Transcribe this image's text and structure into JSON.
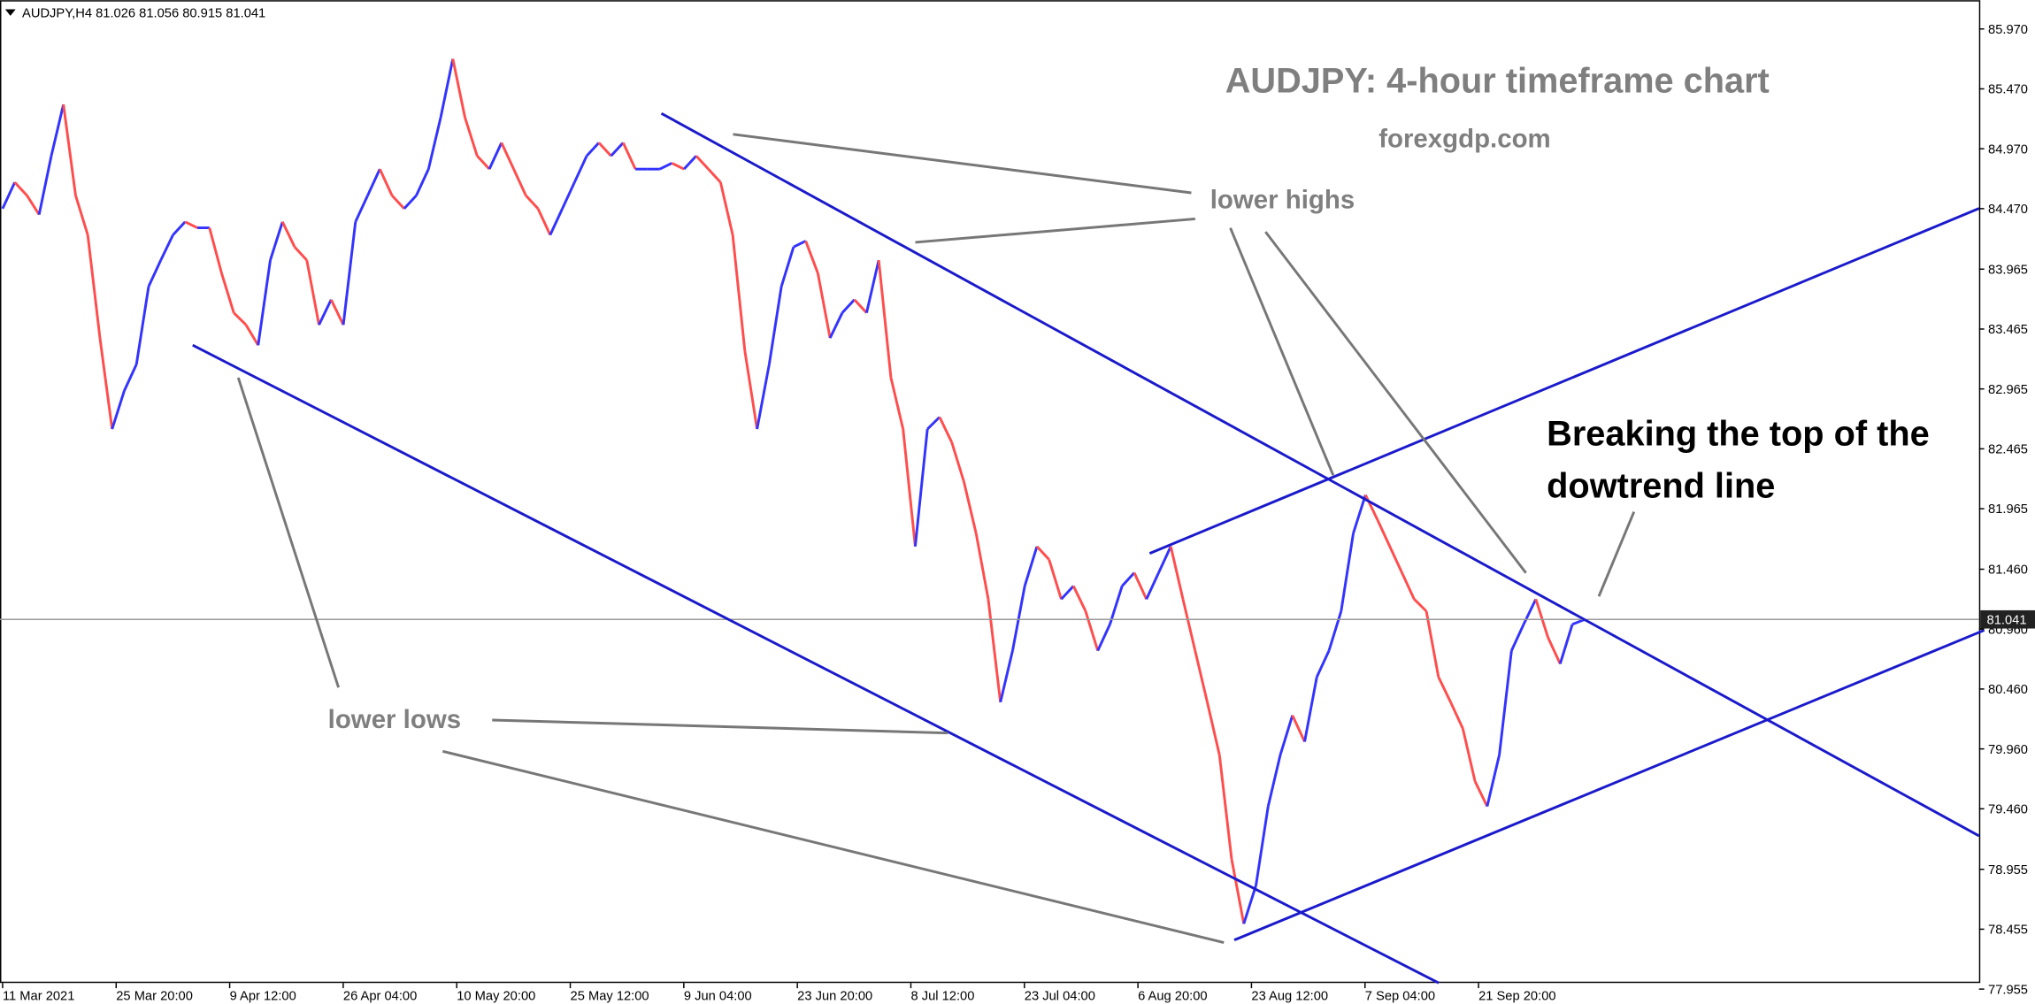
{
  "header": "AUDJPY,H4  81.026 81.056 80.915 81.041",
  "chart_data": {
    "type": "price-line",
    "title": "AUDJPY: 4-hour timeframe chart",
    "subtitle": "forexgdp.com",
    "annotations": [
      "lower highs",
      "Breaking the top of the",
      "dowtrend line",
      "lower lows"
    ],
    "up_color": "#3333ff",
    "down_color": "#ff4d4d",
    "ylim": [
      77.93,
      86.21
    ],
    "yticks": [
      {
        "value": 85.97,
        "label": "85.970"
      },
      {
        "value": 85.47,
        "label": "85.470"
      },
      {
        "value": 84.97,
        "label": "84.970"
      },
      {
        "value": 84.47,
        "label": "84.470"
      },
      83.965,
      83.465,
      82.965,
      82.465,
      81.965,
      {
        "value": 81.46,
        "label": "81.460"
      },
      {
        "value": 80.96,
        "label": "80.960"
      },
      {
        "value": 80.46,
        "label": "80.460"
      },
      {
        "value": 79.96,
        "label": "79.960"
      },
      {
        "value": 79.46,
        "label": "79.460"
      },
      78.955,
      78.455,
      77.955
    ],
    "current_price": 81.041,
    "xtick_labels": [
      "11 Mar 2021",
      "25 Mar 20:00",
      "9 Apr 12:00",
      "26 Apr 04:00",
      "10 May 20:00",
      "25 May 12:00",
      "9 Jun 04:00",
      "23 Jun 20:00",
      "8 Jul 12:00",
      "23 Jul 04:00",
      "6 Aug 20:00",
      "23 Aug 12:00",
      "7 Sep 04:00",
      "21 Sep 20:00"
    ],
    "values": [
      84.47,
      84.69,
      84.58,
      84.42,
      84.91,
      85.34,
      84.58,
      84.25,
      83.39,
      82.63,
      82.95,
      83.17,
      83.82,
      84.04,
      84.25,
      84.36,
      84.31,
      84.31,
      83.93,
      83.6,
      83.5,
      83.33,
      84.04,
      84.36,
      84.15,
      84.04,
      83.5,
      83.71,
      83.5,
      84.36,
      84.58,
      84.8,
      84.58,
      84.47,
      84.58,
      84.8,
      85.23,
      85.72,
      85.23,
      84.91,
      84.8,
      85.02,
      84.8,
      84.58,
      84.47,
      84.25,
      84.47,
      84.69,
      84.91,
      85.02,
      84.91,
      85.02,
      84.8,
      84.8,
      84.8,
      84.85,
      84.8,
      84.91,
      84.8,
      84.69,
      84.25,
      83.28,
      82.63,
      83.17,
      83.82,
      84.15,
      84.2,
      83.93,
      83.39,
      83.6,
      83.71,
      83.6,
      84.04,
      83.06,
      82.63,
      81.65,
      82.63,
      82.73,
      82.52,
      82.19,
      81.76,
      81.21,
      80.35,
      80.78,
      81.32,
      81.65,
      81.54,
      81.21,
      81.32,
      81.11,
      80.78,
      81.0,
      81.32,
      81.43,
      81.21,
      81.43,
      81.65,
      81.21,
      80.78,
      80.35,
      79.91,
      79.04,
      78.5,
      78.82,
      79.48,
      79.91,
      80.24,
      80.02,
      80.56,
      80.78,
      81.11,
      81.76,
      82.08,
      81.87,
      81.65,
      81.43,
      81.21,
      81.11,
      80.56,
      80.35,
      80.13,
      79.69,
      79.48,
      79.91,
      80.78,
      81.0,
      81.21,
      80.89,
      80.67,
      81.0,
      81.04
    ]
  }
}
